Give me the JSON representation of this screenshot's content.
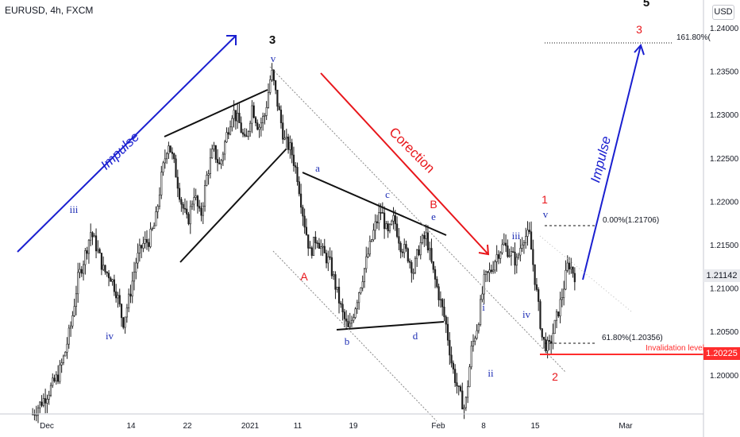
{
  "header": {
    "symbol": "EURUSD, 4h, FXCM",
    "currency": "USD"
  },
  "price_badges": {
    "last": "1.21142",
    "invalidation": "1.20225"
  },
  "colors": {
    "impulse": "#1a1fd0",
    "correction": "#e8161b",
    "label_blue": "#1f2fb5",
    "label_red": "#e8161b",
    "candle": "#1f1f1f"
  },
  "chart_data": {
    "type": "candlestick",
    "symbol": "EURUSD",
    "timeframe": "4h",
    "source": "FXCM",
    "ylim": [
      1.1955,
      1.2432
    ],
    "y_ticks": [
      "1.24000",
      "1.23500",
      "1.23000",
      "1.22500",
      "1.22000",
      "1.21500",
      "1.21000",
      "1.20500",
      "1.20000"
    ],
    "x_ticks": [
      "Dec",
      "14",
      "22",
      "2021",
      "11",
      "19",
      "Feb",
      "8",
      "15",
      "Mar"
    ],
    "last_price": 1.21142,
    "invalidation_price": 1.20225,
    "price_path": [
      [
        0,
        1.1955
      ],
      [
        2,
        1.1975
      ],
      [
        4,
        1.2
      ],
      [
        5,
        1.2025
      ],
      [
        6,
        1.206
      ],
      [
        7,
        1.211
      ],
      [
        8,
        1.2135
      ],
      [
        9,
        1.2165
      ],
      [
        10,
        1.2145
      ],
      [
        11,
        1.212
      ],
      [
        12,
        1.2115
      ],
      [
        13,
        1.2095
      ],
      [
        14,
        1.206
      ],
      [
        15,
        1.209
      ],
      [
        16,
        1.213
      ],
      [
        17,
        1.215
      ],
      [
        18,
        1.2155
      ],
      [
        19,
        1.2175
      ],
      [
        20,
        1.223
      ],
      [
        21,
        1.227
      ],
      [
        22,
        1.224
      ],
      [
        23,
        1.22
      ],
      [
        24,
        1.2175
      ],
      [
        25,
        1.221
      ],
      [
        26,
        1.218
      ],
      [
        27,
        1.223
      ],
      [
        28,
        1.226
      ],
      [
        29,
        1.224
      ],
      [
        30,
        1.2275
      ],
      [
        31,
        1.2305
      ],
      [
        32,
        1.229
      ],
      [
        33,
        1.2265
      ],
      [
        34,
        1.231
      ],
      [
        35,
        1.2285
      ],
      [
        36,
        1.23
      ],
      [
        37,
        1.235
      ],
      [
        38,
        1.231
      ],
      [
        39,
        1.227
      ],
      [
        40,
        1.226
      ],
      [
        41,
        1.223
      ],
      [
        42,
        1.218
      ],
      [
        43,
        1.214
      ],
      [
        44,
        1.216
      ],
      [
        45,
        1.214
      ],
      [
        46,
        1.213
      ],
      [
        47,
        1.21
      ],
      [
        48,
        1.207
      ],
      [
        49,
        1.205
      ],
      [
        50,
        1.208
      ],
      [
        51,
        1.211
      ],
      [
        52,
        1.214
      ],
      [
        53,
        1.217
      ],
      [
        54,
        1.219
      ],
      [
        55,
        1.216
      ],
      [
        56,
        1.218
      ],
      [
        57,
        1.215
      ],
      [
        58,
        1.214
      ],
      [
        59,
        1.212
      ],
      [
        60,
        1.215
      ],
      [
        61,
        1.216
      ],
      [
        62,
        1.212
      ],
      [
        63,
        1.209
      ],
      [
        64,
        1.206
      ],
      [
        65,
        1.201
      ],
      [
        66,
        1.198
      ],
      [
        67,
        1.196
      ],
      [
        68,
        1.203
      ],
      [
        69,
        1.206
      ],
      [
        70,
        1.211
      ],
      [
        71,
        1.212
      ],
      [
        72,
        1.214
      ],
      [
        73,
        1.215
      ],
      [
        74,
        1.214
      ],
      [
        75,
        1.213
      ],
      [
        76,
        1.216
      ],
      [
        77,
        1.216
      ],
      [
        78,
        1.21
      ],
      [
        79,
        1.204
      ],
      [
        80,
        1.203
      ],
      [
        81,
        1.206
      ],
      [
        82,
        1.209
      ],
      [
        83,
        1.213
      ],
      [
        84,
        1.2115
      ]
    ],
    "fib_levels": [
      {
        "label": "0.00%(1.21706)",
        "price": 1.21706
      },
      {
        "label": "61.80%(1.20356)",
        "price": 1.20356
      },
      {
        "label": "161.80%(",
        "price": 1.2379
      }
    ],
    "annotations": {
      "impulse_label": "Impulse",
      "correction_label": "Corection",
      "invalidation_label": "Invalidation level"
    },
    "wave_labels": {
      "blue": [
        "iii",
        "iv",
        "v",
        "a",
        "b",
        "c",
        "d",
        "e",
        "i",
        "ii",
        "iii",
        "iv",
        "v"
      ],
      "red": [
        "A",
        "B",
        "1",
        "2",
        "3"
      ],
      "black": [
        "3",
        "5"
      ]
    }
  }
}
